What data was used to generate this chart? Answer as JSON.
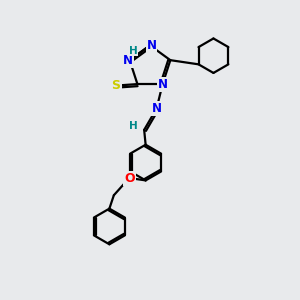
{
  "bg_color": "#e8eaec",
  "atom_colors": {
    "N": "#0000ee",
    "S": "#cccc00",
    "O": "#ff0000",
    "C": "#000000",
    "H": "#008888"
  },
  "bond_color": "#000000",
  "bond_width": 1.6,
  "figsize": [
    3.0,
    3.0
  ],
  "dpi": 100
}
